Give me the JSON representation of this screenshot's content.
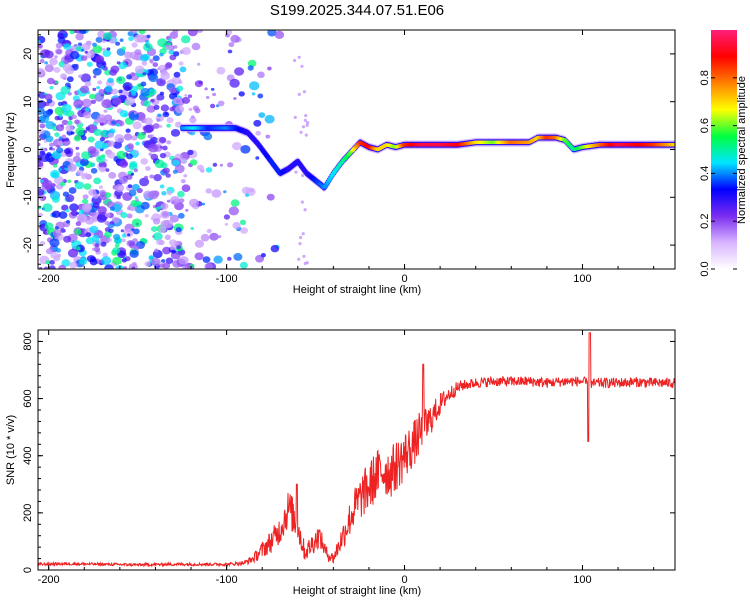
{
  "title": "S199.2025.344.07.51.E06",
  "chart_data": [
    {
      "type": "heatmap",
      "title": "S199.2025.344.07.51.E06",
      "xlabel": "Height of straight line (km)",
      "ylabel": "Frequency (Hz)",
      "xlim": [
        -206,
        152
      ],
      "ylim": [
        -25,
        25
      ],
      "xticks": [
        -200,
        -100,
        0,
        100
      ],
      "yticks": [
        -20,
        -10,
        0,
        10,
        20
      ],
      "colorbar": {
        "label": "Normalized spectral amplitude",
        "range": [
          0,
          1
        ],
        "ticks": [
          "0.0",
          "0.2",
          "0.4",
          "0.6",
          "0.8"
        ],
        "colormap": [
          "#ffffff",
          "#d8b4ff",
          "#7a2cf0",
          "#0000ff",
          "#00e5ff",
          "#00ff40",
          "#ffff00",
          "#ff8000",
          "#ff0000",
          "#ff1f7a"
        ]
      },
      "noise_region_x": [
        -206,
        -95
      ],
      "ridge_x": [
        -125,
        -118,
        -110,
        -100,
        -95,
        -88,
        -82,
        -75,
        -70,
        -65,
        -60,
        -55,
        -50,
        -45,
        -40,
        -35,
        -30,
        -25,
        -20,
        -15,
        -10,
        -5,
        0,
        10,
        20,
        30,
        40,
        50,
        60,
        70,
        75,
        80,
        85,
        90,
        95,
        100,
        110,
        120,
        130,
        140,
        152
      ],
      "ridge_y": [
        4.5,
        4.5,
        4.5,
        4.5,
        4.5,
        3.5,
        1.0,
        -2.5,
        -5.0,
        -4.0,
        -2.5,
        -5.0,
        -6.5,
        -8.0,
        -5.0,
        -2.5,
        -0.5,
        1.5,
        0.5,
        0.0,
        1.0,
        0.5,
        1.0,
        1.0,
        1.0,
        1.0,
        1.5,
        1.5,
        1.5,
        1.5,
        2.5,
        2.5,
        2.5,
        2.0,
        0.0,
        0.5,
        1.0,
        1.0,
        1.0,
        1.0,
        1.0
      ],
      "ridge_amp": [
        0.4,
        0.45,
        0.35,
        0.4,
        0.35,
        0.3,
        0.3,
        0.35,
        0.35,
        0.3,
        0.3,
        0.3,
        0.35,
        0.4,
        0.45,
        0.5,
        0.6,
        0.85,
        0.9,
        0.7,
        0.7,
        0.6,
        0.85,
        0.95,
        0.95,
        0.9,
        0.7,
        0.6,
        0.8,
        0.75,
        0.7,
        0.85,
        0.8,
        0.6,
        0.5,
        0.6,
        0.8,
        0.95,
        0.9,
        0.85,
        0.7
      ]
    },
    {
      "type": "line",
      "xlabel": "Height of straight line (km)",
      "ylabel": "SNR (10 * v/v)",
      "xlim": [
        -206,
        152
      ],
      "ylim": [
        0,
        840
      ],
      "xticks": [
        -200,
        -100,
        0,
        100
      ],
      "yticks": [
        0,
        200,
        400,
        600,
        800
      ],
      "series": [
        {
          "name": "SNR",
          "color": "#ee2222",
          "x": [
            -206,
            -190,
            -170,
            -150,
            -130,
            -110,
            -100,
            -95,
            -90,
            -85,
            -80,
            -75,
            -70,
            -65,
            -60,
            -56,
            -52,
            -48,
            -44,
            -40,
            -36,
            -32,
            -28,
            -24,
            -20,
            -16,
            -12,
            -8,
            -4,
            0,
            4,
            8,
            12,
            16,
            20,
            24,
            28,
            32,
            36,
            40,
            50,
            60,
            70,
            80,
            90,
            100,
            104,
            110,
            120,
            130,
            140,
            152
          ],
          "y": [
            20,
            22,
            20,
            18,
            20,
            20,
            20,
            22,
            25,
            40,
            70,
            100,
            140,
            220,
            150,
            60,
            90,
            120,
            60,
            40,
            100,
            160,
            220,
            260,
            290,
            330,
            350,
            340,
            370,
            400,
            430,
            470,
            500,
            540,
            580,
            610,
            630,
            645,
            650,
            655,
            660,
            660,
            660,
            655,
            660,
            660,
            650,
            655,
            655,
            658,
            655,
            655
          ],
          "noise": [
            5,
            5,
            5,
            5,
            5,
            5,
            5,
            6,
            8,
            15,
            30,
            40,
            50,
            70,
            60,
            30,
            40,
            40,
            25,
            20,
            40,
            60,
            70,
            80,
            90,
            90,
            90,
            90,
            90,
            90,
            80,
            80,
            70,
            50,
            40,
            30,
            25,
            20,
            18,
            18,
            18,
            18,
            18,
            18,
            18,
            18,
            18,
            18,
            18,
            18,
            18,
            18
          ]
        }
      ]
    }
  ]
}
